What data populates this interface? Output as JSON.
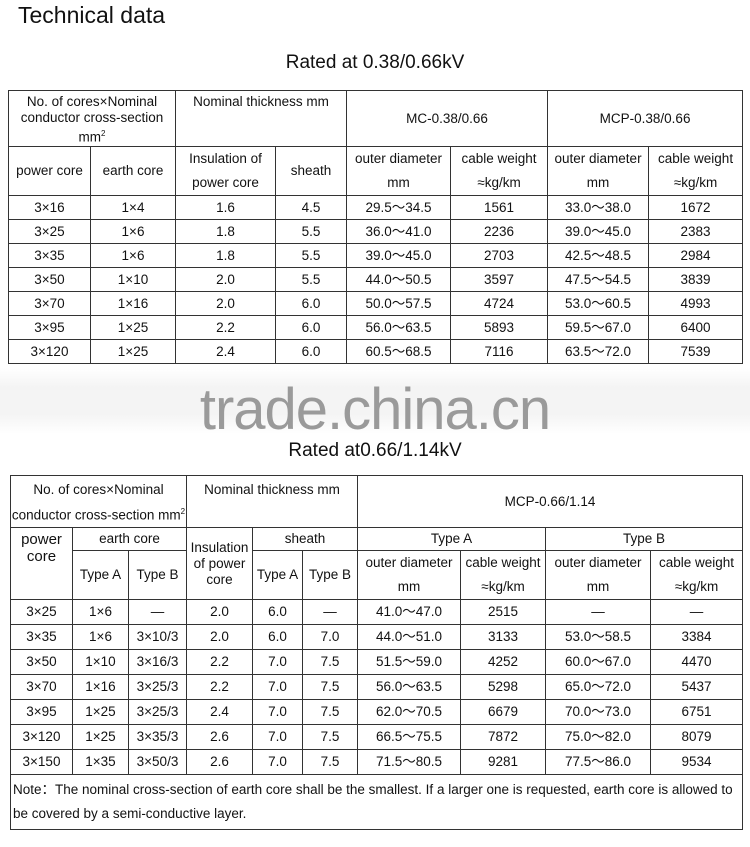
{
  "title": "Technical data",
  "watermark": "trade.china.cn",
  "table1": {
    "rated": "Rated at 0.38/0.66kV",
    "h_cores": "No. of cores×Nominal conductor cross-section mm",
    "h_cores_sup": "2",
    "h_thick": "Nominal thickness mm",
    "h_mc": "MC-0.38/0.66",
    "h_mcp": "MCP-0.38/0.66",
    "sub": [
      "power core",
      "earth core",
      "Insulation of power core",
      "sheath",
      "outer diameter mm",
      "cable weight ≈kg/km",
      "outer diameter mm",
      "cable weight ≈kg/km"
    ],
    "rows": [
      [
        "3×16",
        "1×4",
        "1.6",
        "4.5",
        "29.5～34.5",
        "1561",
        "33.0～38.0",
        "1672"
      ],
      [
        "3×25",
        "1×6",
        "1.8",
        "5.5",
        "36.0～41.0",
        "2236",
        "39.0～45.0",
        "2383"
      ],
      [
        "3×35",
        "1×6",
        "1.8",
        "5.5",
        "39.0～45.0",
        "2703",
        "42.5～48.5",
        "2984"
      ],
      [
        "3×50",
        "1×10",
        "2.0",
        "5.5",
        "44.0～50.5",
        "3597",
        "47.5～54.5",
        "3839"
      ],
      [
        "3×70",
        "1×16",
        "2.0",
        "6.0",
        "50.0～57.5",
        "4724",
        "53.0～60.5",
        "4993"
      ],
      [
        "3×95",
        "1×25",
        "2.2",
        "6.0",
        "56.0～63.5",
        "5893",
        "59.5～67.0",
        "6400"
      ],
      [
        "3×120",
        "1×25",
        "2.4",
        "6.0",
        "60.5～68.5",
        "7116",
        "63.5～72.0",
        "7539"
      ]
    ]
  },
  "table2": {
    "rated": "Rated at0.66/1.14kV",
    "h_cores": "No. of cores×Nominal conductor cross-section mm",
    "h_cores_sup": "2",
    "h_thick": "Nominal thickness mm",
    "h_mcp": "MCP-0.66/1.14",
    "power_core": "power core",
    "earth_core": "earth core",
    "insulation": "Insulation of power core",
    "sheath": "sheath",
    "type_a": "Type A",
    "type_b": "Type B",
    "sub": [
      "Type A",
      "Type B",
      "Type A",
      "Type B",
      "outer diameter mm",
      "cable weight ≈kg/km",
      "outer diameter mm",
      "cable weight ≈kg/km"
    ],
    "rows": [
      [
        "3×25",
        "1×6",
        "—",
        "2.0",
        "6.0",
        "—",
        "41.0～47.0",
        "2515",
        "—",
        "—"
      ],
      [
        "3×35",
        "1×6",
        "3×10/3",
        "2.0",
        "6.0",
        "7.0",
        "44.0～51.0",
        "3133",
        "53.0～58.5",
        "3384"
      ],
      [
        "3×50",
        "1×10",
        "3×16/3",
        "2.2",
        "7.0",
        "7.5",
        "51.5～59.0",
        "4252",
        "60.0～67.0",
        "4470"
      ],
      [
        "3×70",
        "1×16",
        "3×25/3",
        "2.2",
        "7.0",
        "7.5",
        "56.0～63.5",
        "5298",
        "65.0～72.0",
        "5437"
      ],
      [
        "3×95",
        "1×25",
        "3×25/3",
        "2.4",
        "7.0",
        "7.5",
        "62.0～70.5",
        "6679",
        "70.0～73.0",
        "6751"
      ],
      [
        "3×120",
        "1×25",
        "3×35/3",
        "2.6",
        "7.0",
        "7.5",
        "66.5～75.5",
        "7872",
        "75.0～82.0",
        "8079"
      ],
      [
        "3×150",
        "1×35",
        "3×50/3",
        "2.6",
        "7.0",
        "7.5",
        "71.5～80.5",
        "9281",
        "77.5～86.0",
        "9534"
      ]
    ],
    "note": "Note：The nominal cross-section of earth core shall be the smallest. If a larger one is requested, earth core is allowed to be covered by a semi-conductive layer."
  }
}
